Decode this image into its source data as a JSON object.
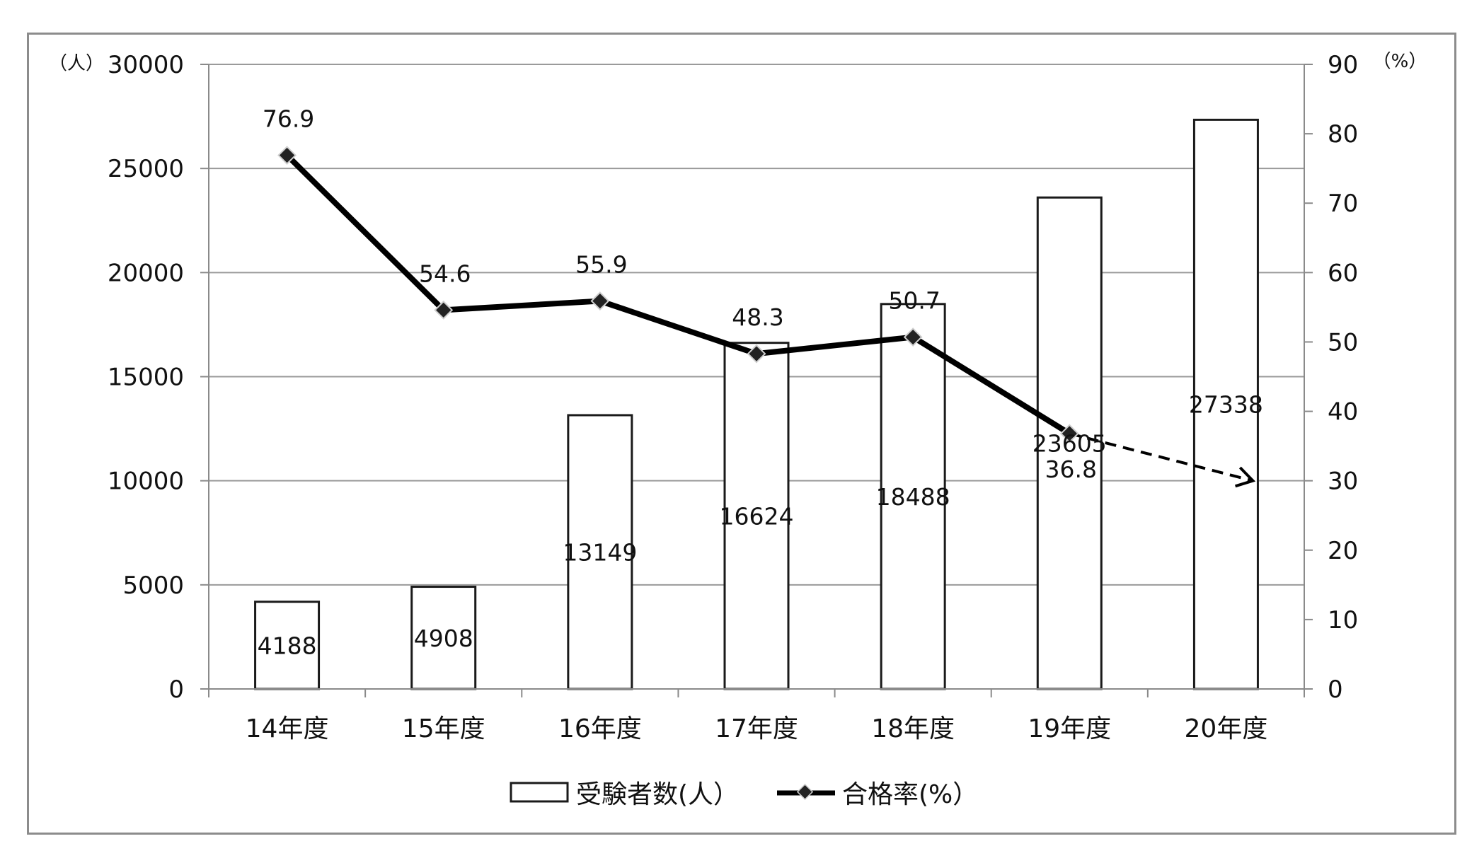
{
  "chart_data": {
    "type": "bar",
    "categories": [
      "14年度",
      "15年度",
      "16年度",
      "17年度",
      "18年度",
      "19年度",
      "20年度"
    ],
    "series": [
      {
        "name": "受験者数(人）",
        "type": "bar",
        "axis": "left",
        "values": [
          4188,
          4908,
          13149,
          16624,
          18488,
          23605,
          27338
        ]
      },
      {
        "name": "合格率(%）",
        "type": "line",
        "axis": "right",
        "values": [
          76.9,
          54.6,
          55.9,
          48.3,
          50.7,
          36.8,
          null
        ],
        "projection": {
          "to_category": "20年度",
          "value": 30,
          "style": "dashed-arrow"
        }
      }
    ],
    "left_axis": {
      "unit": "（人）",
      "ylim": [
        0,
        30000
      ],
      "ticks": [
        0,
        5000,
        10000,
        15000,
        20000,
        25000,
        30000
      ]
    },
    "right_axis": {
      "unit": "（%）",
      "ylim": [
        0,
        90
      ],
      "ticks": [
        0,
        10,
        20,
        30,
        40,
        50,
        60,
        70,
        80,
        90
      ]
    },
    "grid": true,
    "legend_position": "bottom",
    "colors": {
      "bar_fill": "#ffffff",
      "bar_stroke": "#1a1a1a",
      "line": "#000000",
      "marker": "#222222",
      "grid": "#9a9a9a",
      "frame": "#8c8c8c"
    }
  }
}
